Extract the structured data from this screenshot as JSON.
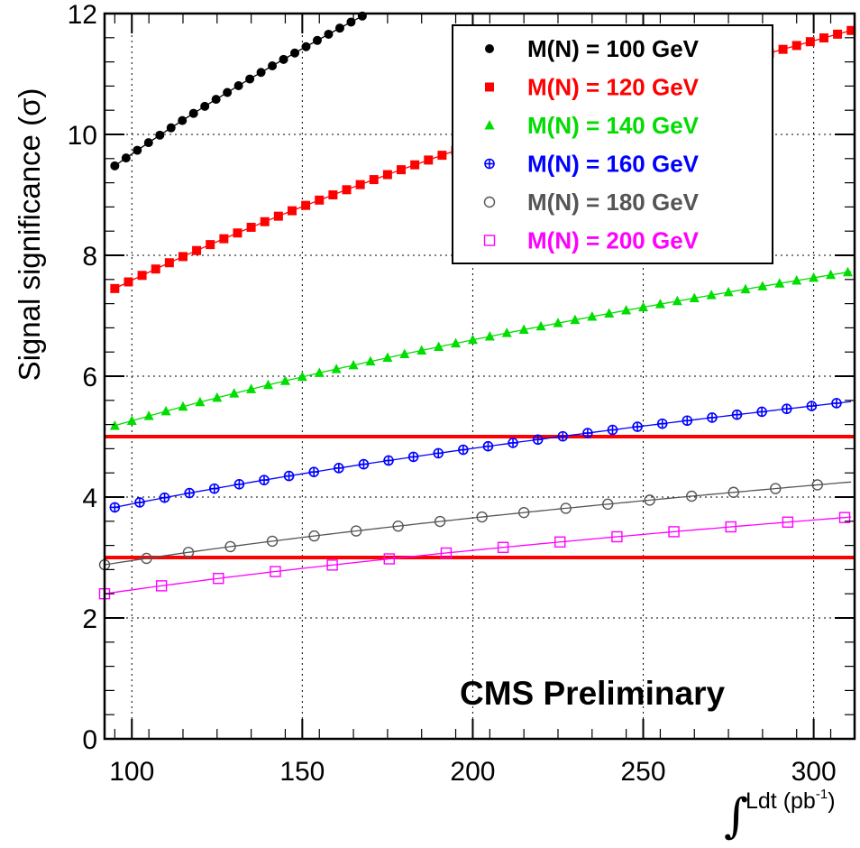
{
  "chart_data": {
    "type": "scatter",
    "title": "",
    "xlabel": "Ldt (pb",
    "xlabel_sup": "-1",
    "xlabel_close": ")",
    "xlabel_integral": "∫",
    "ylabel": "Signal significance (σ)",
    "xlim": [
      92,
      312
    ],
    "ylim": [
      0,
      12
    ],
    "xticks": [
      100,
      150,
      200,
      250,
      300
    ],
    "yticks": [
      0,
      2,
      4,
      6,
      8,
      10,
      12
    ],
    "grid": true,
    "legend_position": "top-right",
    "annotation": "CMS Preliminary",
    "threshold_lines": [
      {
        "y": 5,
        "color": "#ff0000"
      },
      {
        "y": 3,
        "color": "#ff0000"
      }
    ],
    "series": [
      {
        "name": "M(N) = 100 GeV",
        "color": "#000000",
        "marker": "filled-circle",
        "x_start": 95,
        "x_step": 3.3,
        "x_end": 169,
        "y_start": 9.48,
        "y_end": 12.0,
        "sqrt_fit": true
      },
      {
        "name": "M(N) = 120 GeV",
        "color": "#ff0000",
        "marker": "filled-square",
        "x_start": 95,
        "x_step": 4,
        "x_end": 311,
        "y_start": 7.45,
        "y_end": 11.72,
        "sqrt_fit": true
      },
      {
        "name": "M(N) = 140 GeV",
        "color": "#00dd00",
        "marker": "filled-triangle",
        "x_start": 95,
        "x_step": 5,
        "x_end": 311,
        "y_start": 5.18,
        "y_end": 7.73,
        "sqrt_fit": true
      },
      {
        "name": "M(N) = 160 GeV",
        "color": "#0000ff",
        "marker": "open-cross-circle",
        "x_start": 95,
        "x_step": 7.3,
        "x_end": 311,
        "y_start": 3.83,
        "y_end": 5.58,
        "sqrt_fit": true
      },
      {
        "name": "M(N) = 180 GeV",
        "color": "#555555",
        "marker": "open-circle",
        "x_start": 92,
        "x_step": 12.3,
        "x_end": 311,
        "y_start": 2.88,
        "y_end": 4.25,
        "sqrt_fit": true
      },
      {
        "name": "M(N) = 200 GeV",
        "color": "#ff00ff",
        "marker": "open-square",
        "x_start": 92,
        "x_step": 16.7,
        "x_end": 311,
        "y_start": 2.4,
        "y_end": 3.67,
        "sqrt_fit": true
      }
    ]
  }
}
